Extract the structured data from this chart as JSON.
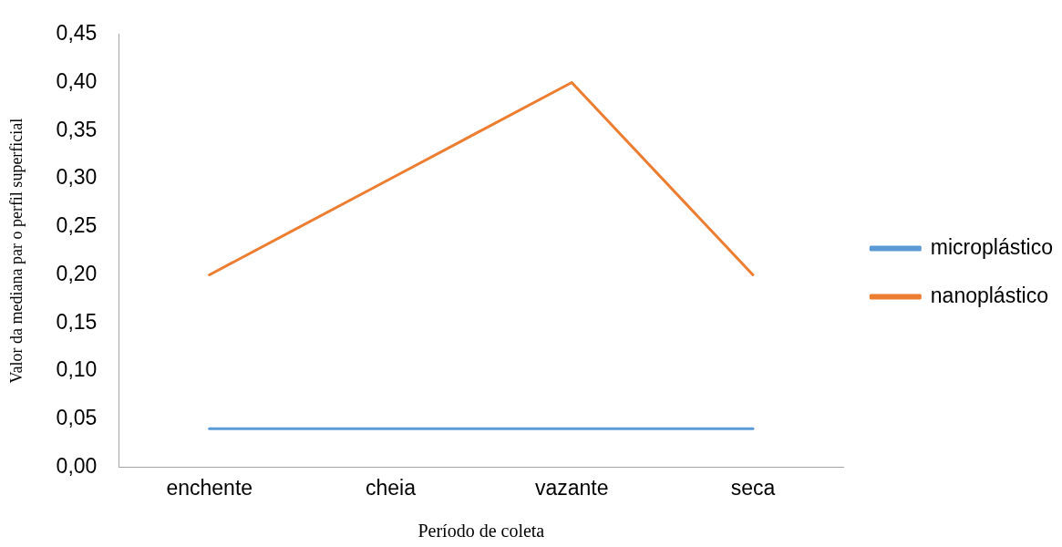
{
  "chart_data": {
    "type": "line",
    "xlabel": "Período de coleta",
    "ylabel": "Valor da mediana par o perfil superficial",
    "categories": [
      "enchente",
      "cheia",
      "vazante",
      "seca"
    ],
    "series": [
      {
        "name": "microplástico",
        "color": "#5b9bd5",
        "values": [
          0.04,
          0.04,
          0.04,
          0.04
        ]
      },
      {
        "name": "nanoplástico",
        "color": "#ed7d31",
        "values": [
          0.2,
          0.3,
          0.4,
          0.2
        ]
      }
    ],
    "ylim": [
      0,
      0.45
    ],
    "yticks": [
      {
        "value": 0,
        "label": "0,00"
      },
      {
        "value": 0.05,
        "label": "0,05"
      },
      {
        "value": 0.1,
        "label": "0,10"
      },
      {
        "value": 0.15,
        "label": "0,15"
      },
      {
        "value": 0.2,
        "label": "0,20"
      },
      {
        "value": 0.25,
        "label": "0,25"
      },
      {
        "value": 0.3,
        "label": "0,30"
      },
      {
        "value": 0.35,
        "label": "0,35"
      },
      {
        "value": 0.4,
        "label": "0,40"
      },
      {
        "value": 0.45,
        "label": "0,45"
      }
    ],
    "grid": false,
    "legend": "right",
    "marker": "none",
    "line_style": "solid"
  }
}
